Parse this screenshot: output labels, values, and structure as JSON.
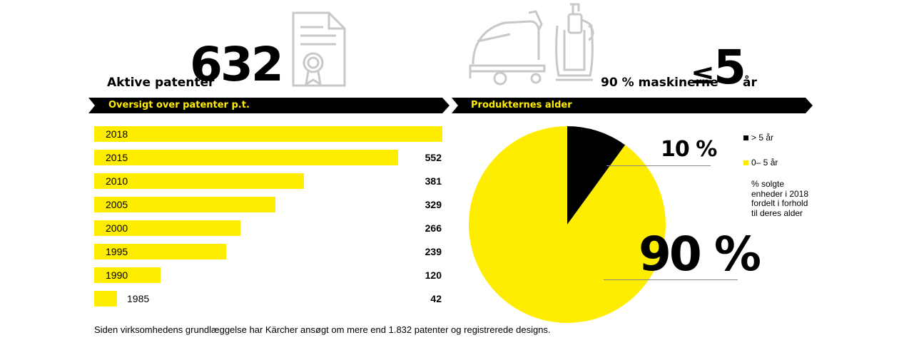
{
  "header_left": {
    "label": "Aktive patenter",
    "value": "632"
  },
  "header_right": {
    "label": "90 % maskinerne",
    "symbol": "≤",
    "value": "5",
    "unit": "år"
  },
  "icons": [
    "certificate-icon",
    "floor-scrubber-icon",
    "upright-vacuum-icon"
  ],
  "colors": {
    "yellow": "#ffed00",
    "black": "#000000",
    "icon_gray": "#c8c8c8"
  },
  "chart_data": [
    {
      "type": "bar",
      "title": "Oversigt over patenter p.t.",
      "categories": [
        "2018",
        "2015",
        "2010",
        "2005",
        "2000",
        "1995",
        "1990",
        "1985"
      ],
      "values": [
        632,
        552,
        381,
        329,
        266,
        239,
        120,
        42
      ],
      "value_labels": [
        "",
        "552",
        "381",
        "329",
        "266",
        "239",
        "120",
        "42"
      ],
      "orientation": "horizontal",
      "xlim": [
        0,
        632
      ]
    },
    {
      "type": "pie",
      "title": "Produkternes alder",
      "slices": [
        {
          "name": "> 5 år",
          "value": 10,
          "label": "10 %",
          "color": "#000000"
        },
        {
          "name": "0– 5 år",
          "value": 90,
          "label": "90 %",
          "color": "#ffed00"
        }
      ],
      "legend_position": "right",
      "note": "% solgte enheder i 2018 fordelt i forhold til deres alder"
    }
  ],
  "footnote": "Siden virksomhedens grundlæggelse har Kärcher ansøgt om mere end 1.832 patenter og registrerede designs."
}
